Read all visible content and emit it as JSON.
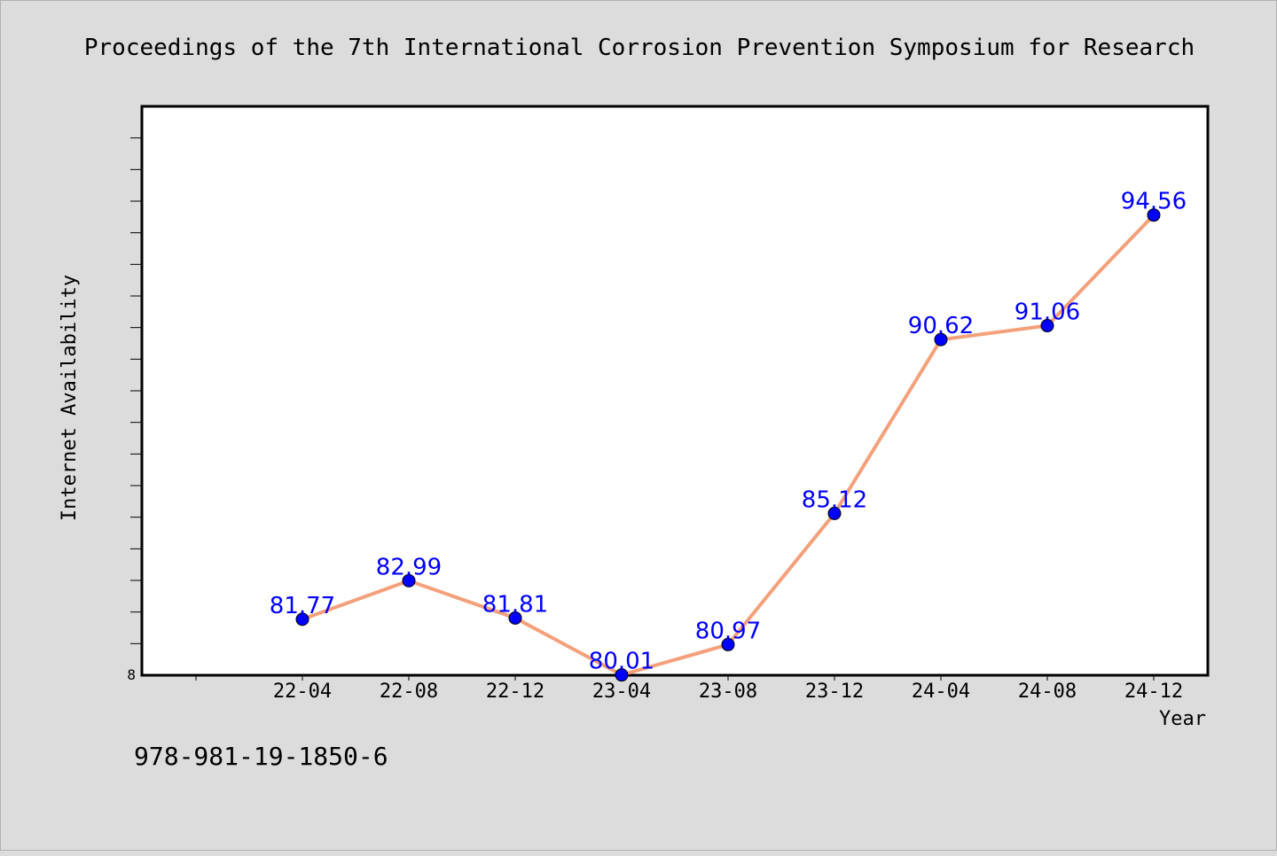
{
  "chart_data": {
    "type": "line",
    "title": "Proceedings of the 7th International Corrosion Prevention Symposium for Research",
    "xlabel": "Year",
    "ylabel": "Internet Availability",
    "categories": [
      "22-04",
      "22-08",
      "22-12",
      "23-04",
      "23-08",
      "23-12",
      "24-04",
      "24-08",
      "24-12"
    ],
    "series": [
      {
        "values": [
          81.77,
          82.99,
          81.81,
          80.01,
          80.97,
          85.12,
          90.62,
          91.06,
          94.56
        ],
        "labels": [
          "81.77",
          "82.99",
          "81.81",
          "80.01",
          "80.97",
          "85.12",
          "90.62",
          "91.06",
          "94.56"
        ],
        "line_color": "#f4a07a",
        "marker_color": "#0000ff"
      }
    ],
    "ylim": [
      80,
      98
    ],
    "y_tick_labels": [
      "8"
    ],
    "grid": false,
    "legend": "none"
  },
  "footnote": "978-981-19-1850-6"
}
